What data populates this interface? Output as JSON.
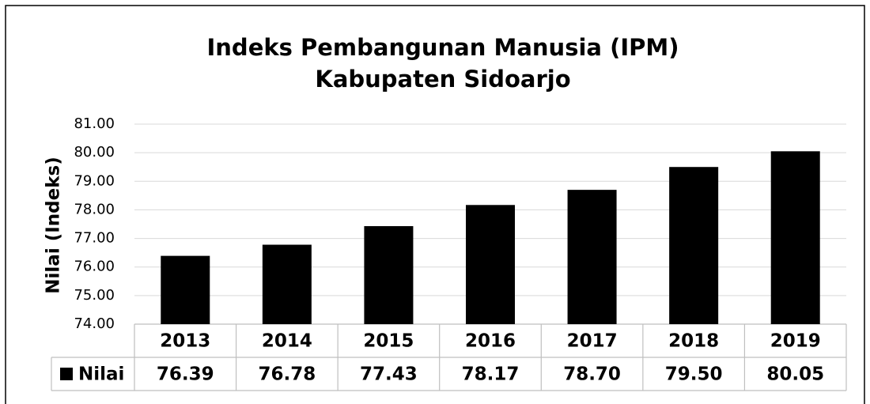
{
  "chart_data": {
    "type": "bar",
    "title": [
      "Indeks Pembangunan Manusia (IPM)",
      "Kabupaten Sidoarjo"
    ],
    "y_label": "Nilai (Indeks)",
    "categories": [
      "2013",
      "2014",
      "2015",
      "2016",
      "2017",
      "2018",
      "2019"
    ],
    "series": [
      {
        "name": "Nilai",
        "color": "#000000",
        "values": [
          76.39,
          76.78,
          77.43,
          78.17,
          78.7,
          79.5,
          80.05
        ],
        "value_labels": [
          "76.39",
          "76.78",
          "77.43",
          "78.17",
          "78.70",
          "79.50",
          "80.05"
        ]
      }
    ],
    "ylim": [
      74,
      81
    ],
    "yticks": [
      {
        "value": 74,
        "label": "74.00"
      },
      {
        "value": 75,
        "label": "75.00"
      },
      {
        "value": 76,
        "label": "76.00"
      },
      {
        "value": 77,
        "label": "77.00"
      },
      {
        "value": 78,
        "label": "78.00"
      },
      {
        "value": 79,
        "label": "79.00"
      },
      {
        "value": 80,
        "label": "80.00"
      },
      {
        "value": 81,
        "label": "81.00"
      }
    ],
    "grid": true
  }
}
